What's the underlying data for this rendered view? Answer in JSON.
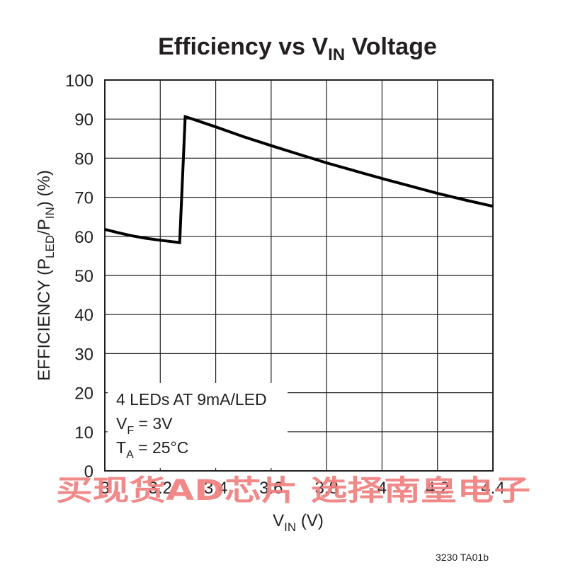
{
  "chart_data": {
    "type": "line",
    "title": {
      "main": "Efficiency vs V",
      "sub": "IN",
      "tail": " Voltage"
    },
    "xlabel": {
      "main": "V",
      "sub": "IN",
      "tail": " (V)"
    },
    "ylabel": {
      "p1": "EFFICIENCY (P",
      "s1": "LED",
      "p2": "/P",
      "s2": "IN",
      "p3": ") (%)"
    },
    "xlim": [
      3.0,
      4.4
    ],
    "ylim": [
      0,
      100
    ],
    "x_ticks": [
      {
        "value": 3.0,
        "label": "3"
      },
      {
        "value": 3.2,
        "label": "3.2"
      },
      {
        "value": 3.4,
        "label": "3.4"
      },
      {
        "value": 3.6,
        "label": "3.6"
      },
      {
        "value": 3.8,
        "label": "3.8"
      },
      {
        "value": 4.0,
        "label": "4"
      },
      {
        "value": 4.2,
        "label": "4.2"
      },
      {
        "value": 4.4,
        "label": "4.4"
      }
    ],
    "y_ticks": [
      {
        "value": 0,
        "label": "0"
      },
      {
        "value": 10,
        "label": "10"
      },
      {
        "value": 20,
        "label": "20"
      },
      {
        "value": 30,
        "label": "30"
      },
      {
        "value": 40,
        "label": "40"
      },
      {
        "value": 50,
        "label": "50"
      },
      {
        "value": 60,
        "label": "60"
      },
      {
        "value": 70,
        "label": "70"
      },
      {
        "value": 80,
        "label": "80"
      },
      {
        "value": 90,
        "label": "90"
      },
      {
        "value": 100,
        "label": "100"
      }
    ],
    "grid": true,
    "series": [
      {
        "x": [
          3.0,
          3.05,
          3.1,
          3.15,
          3.2,
          3.27,
          3.29,
          3.3,
          3.4,
          3.5,
          3.6,
          3.7,
          3.8,
          3.9,
          4.0,
          4.1,
          4.2,
          4.3,
          4.4
        ],
        "y": [
          61.8,
          60.9,
          60.1,
          59.5,
          59.0,
          58.4,
          90.6,
          90.4,
          88.0,
          85.5,
          83.2,
          81.0,
          78.8,
          76.8,
          74.8,
          72.9,
          71.0,
          69.3,
          67.7
        ]
      }
    ],
    "annotation": {
      "line1": "4 LEDs AT 9mA/LED",
      "line2": {
        "main": "V",
        "sub": "F",
        "tail": " = 3V"
      },
      "line3": {
        "main": "T",
        "sub": "A",
        "tail": " = 25°C"
      }
    },
    "figure_id": "3230 TA01b"
  },
  "watermark": {
    "text": "买现货AD芯片 选择南皇电子",
    "color": "#f07f7f"
  },
  "colors": {
    "ink": "#231f20",
    "series": "#000000",
    "background": "#ffffff"
  }
}
